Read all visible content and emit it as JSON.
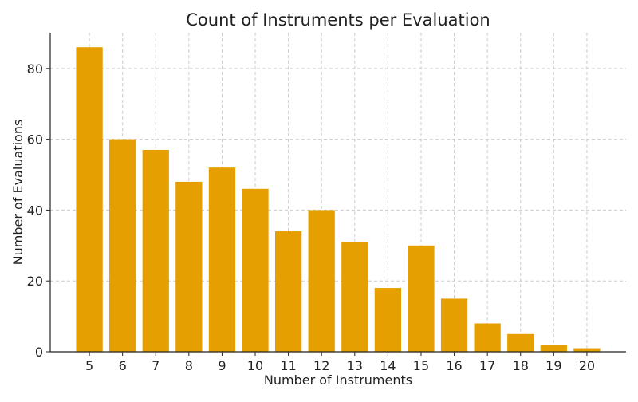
{
  "chart_data": {
    "type": "bar",
    "title": "Count of Instruments per Evaluation",
    "xlabel": "Number of Instruments",
    "ylabel": "Number of Evaluations",
    "categories": [
      5,
      6,
      7,
      8,
      9,
      10,
      11,
      12,
      13,
      14,
      15,
      16,
      17,
      18,
      19,
      20
    ],
    "values": [
      86,
      60,
      57,
      48,
      52,
      46,
      34,
      40,
      31,
      18,
      30,
      15,
      8,
      5,
      2,
      1
    ],
    "ylim": [
      0,
      90
    ],
    "yticks": [
      0,
      20,
      40,
      60,
      80
    ],
    "grid": true,
    "bar_color": "#E69F00"
  }
}
